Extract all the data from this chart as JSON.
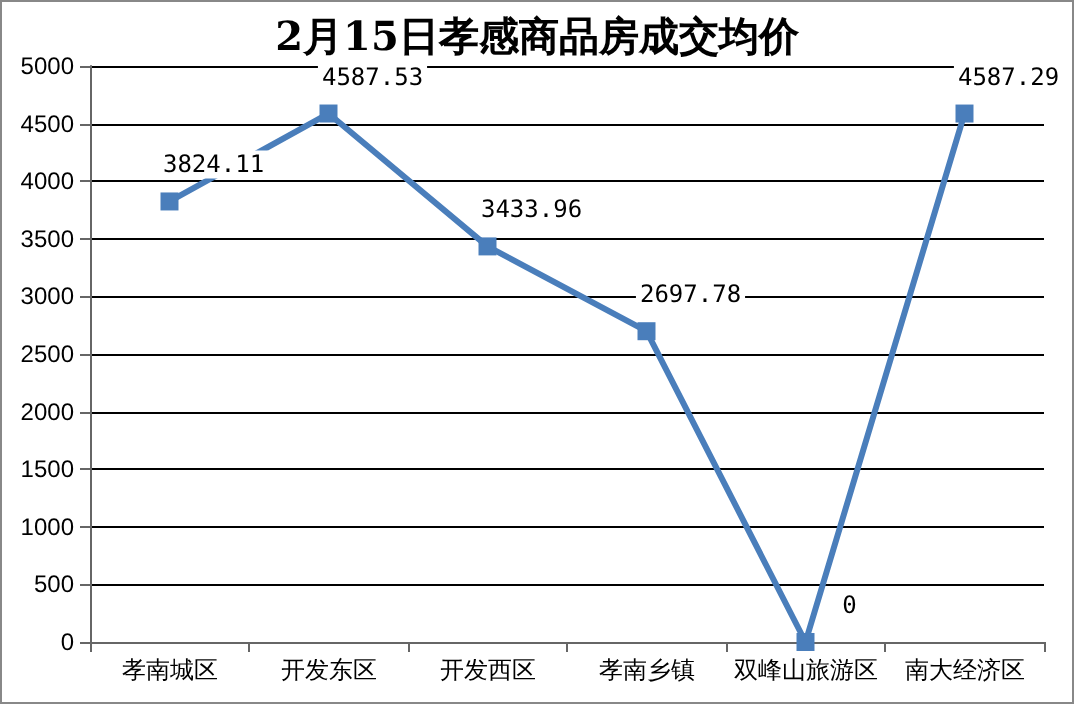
{
  "chart_data": {
    "type": "line",
    "title": "2月15日孝感商品房成交均价",
    "categories": [
      "孝南城区",
      "开发东区",
      "开发西区",
      "孝南乡镇",
      "双峰山旅游区",
      "南大经济区"
    ],
    "series": [
      {
        "color": "#4a7ebb",
        "values": [
          3824.11,
          4587.53,
          3433.96,
          2697.78,
          0,
          4587.29
        ]
      }
    ],
    "ylim": [
      0,
      5000
    ],
    "yticks": [
      0,
      500,
      1000,
      1500,
      2000,
      2500,
      3000,
      3500,
      4000,
      4500,
      5000
    ],
    "grid": "y",
    "marker": "square",
    "line_style": "solid",
    "data_labels": true
  }
}
